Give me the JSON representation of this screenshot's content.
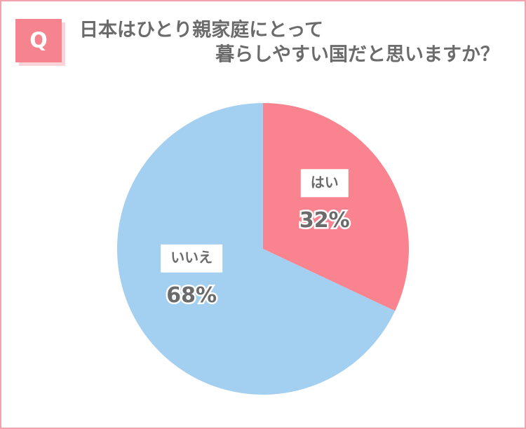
{
  "chart_data": {
    "type": "pie",
    "badge": "Q",
    "title_lines": [
      "日本はひとり親家庭にとって",
      "暮らしやすい国だと思いますか？"
    ],
    "categories": [
      "はい",
      "いいえ"
    ],
    "values": [
      32,
      68
    ],
    "value_labels": [
      "32%",
      "68%"
    ],
    "colors": [
      "#f9838f",
      "#a3cff1"
    ]
  }
}
